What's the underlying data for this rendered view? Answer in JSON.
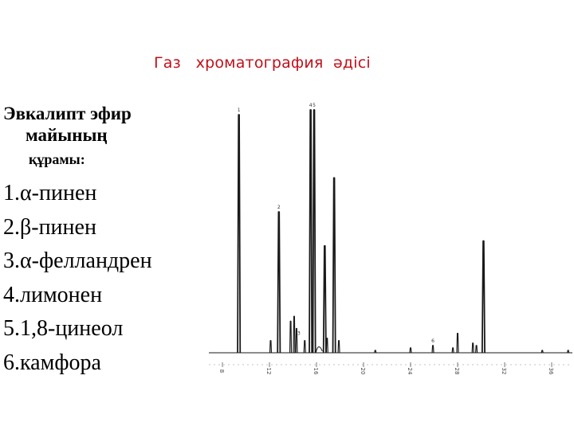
{
  "slide": {
    "title": "Газ   хроматография  әдісі",
    "heading_line1": "Эвкалипт  эфир",
    "heading_line2": "майының",
    "subheading": "құрамы:",
    "components": [
      "1.α-пинен",
      "2.β-пинен",
      "3.α-фелландрен",
      "4.лимонен",
      "5.1,8-цинеол",
      "6.камфора"
    ]
  },
  "chart_data": {
    "type": "line",
    "title": "",
    "xlabel": "",
    "ylabel": "",
    "xlim": [
      6,
      38
    ],
    "ylim": [
      0,
      100
    ],
    "x_ticks": [
      "8",
      "12",
      "16",
      "20",
      "24",
      "28",
      "32",
      "36"
    ],
    "grid": false,
    "line_color": "#1a1a1a",
    "peaks": [
      {
        "x": 9.4,
        "height": 98,
        "label": "1"
      },
      {
        "x": 12.1,
        "height": 5,
        "label": ""
      },
      {
        "x": 12.8,
        "height": 58,
        "label": "2"
      },
      {
        "x": 13.8,
        "height": 13,
        "label": ""
      },
      {
        "x": 14.1,
        "height": 15,
        "label": ""
      },
      {
        "x": 14.3,
        "height": 10,
        "label": "3"
      },
      {
        "x": 15.0,
        "height": 5,
        "label": ""
      },
      {
        "x": 15.5,
        "height": 100,
        "label": "4"
      },
      {
        "x": 15.8,
        "height": 100,
        "label": "5"
      },
      {
        "x": 16.7,
        "height": 44,
        "label": ""
      },
      {
        "x": 16.9,
        "height": 6,
        "label": ""
      },
      {
        "x": 17.5,
        "height": 72,
        "label": ""
      },
      {
        "x": 17.9,
        "height": 5,
        "label": ""
      },
      {
        "x": 21.0,
        "height": 1,
        "label": ""
      },
      {
        "x": 24.0,
        "height": 2,
        "label": ""
      },
      {
        "x": 25.9,
        "height": 3,
        "label": "6"
      },
      {
        "x": 27.6,
        "height": 2,
        "label": ""
      },
      {
        "x": 28.0,
        "height": 8,
        "label": ""
      },
      {
        "x": 29.3,
        "height": 4,
        "label": ""
      },
      {
        "x": 29.6,
        "height": 3,
        "label": ""
      },
      {
        "x": 30.2,
        "height": 46,
        "label": ""
      },
      {
        "x": 35.2,
        "height": 1,
        "label": ""
      },
      {
        "x": 37.4,
        "height": 1,
        "label": ""
      }
    ]
  }
}
